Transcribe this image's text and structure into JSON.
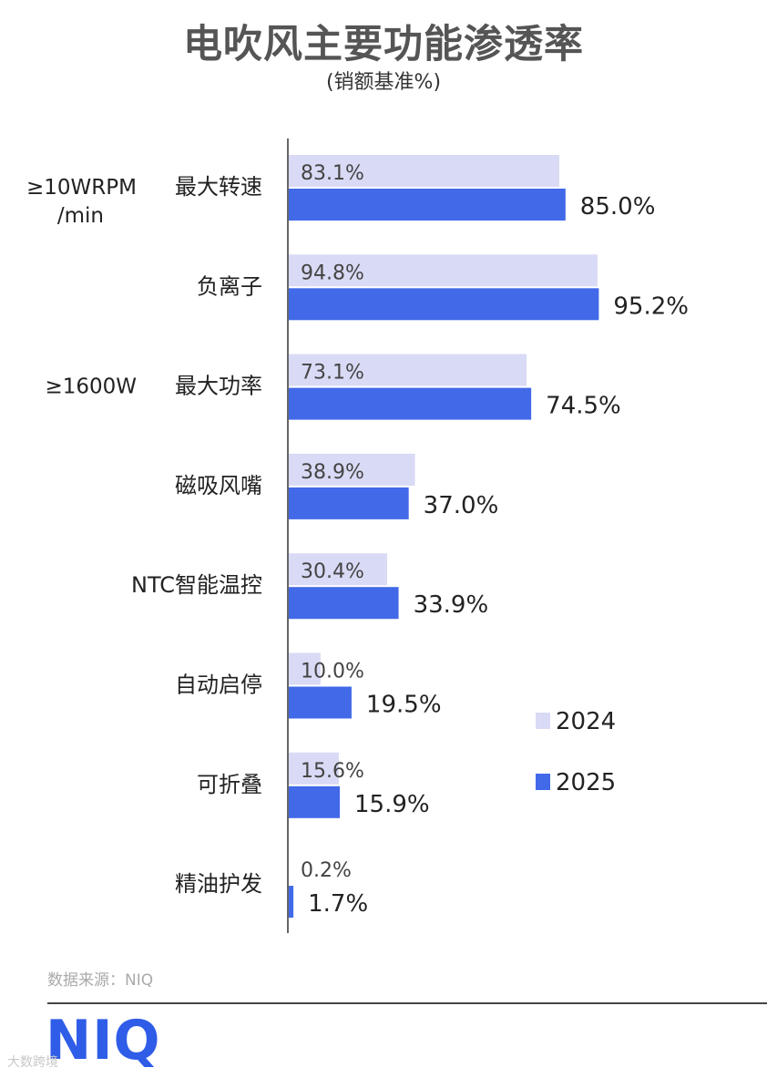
{
  "title": "电吹风主要功能渗透率",
  "subtitle": "(销额基准%)",
  "source": "数据来源：NIQ",
  "logo_text": "NIQ",
  "watermark": "大数跨境",
  "colors": {
    "2024": "#d9daf5",
    "2025": "#4169e8",
    "axis": "#666666"
  },
  "chart_data": {
    "type": "bar",
    "orientation": "horizontal",
    "title": "电吹风主要功能渗透率",
    "subtitle": "(销额基准%)",
    "categories": [
      {
        "name": "最大转速",
        "prefix": "≥10WRPM",
        "prefix2": "/min"
      },
      {
        "name": "负离子"
      },
      {
        "name": "最大功率",
        "prefix": "≥1600W"
      },
      {
        "name": "磁吸风嘴"
      },
      {
        "name": "NTC智能温控"
      },
      {
        "name": "自动启停"
      },
      {
        "name": "可折叠"
      },
      {
        "name": "精油护发"
      }
    ],
    "series": [
      {
        "name": "2024",
        "values": [
          83.1,
          94.8,
          73.1,
          38.9,
          30.4,
          10.0,
          15.6,
          0.2
        ],
        "labels": [
          "83.1%",
          "94.8%",
          "73.1%",
          "38.9%",
          "30.4%",
          "10.0%",
          "15.6%",
          "0.2%"
        ]
      },
      {
        "name": "2025",
        "values": [
          85.0,
          95.2,
          74.5,
          37.0,
          33.9,
          19.5,
          15.9,
          1.7
        ],
        "labels": [
          "85.0%",
          "95.2%",
          "74.5%",
          "37.0%",
          "33.9%",
          "19.5%",
          "15.9%",
          "1.7%"
        ]
      }
    ],
    "xlim": [
      0,
      100
    ],
    "legend_position": "right",
    "grid": false
  }
}
